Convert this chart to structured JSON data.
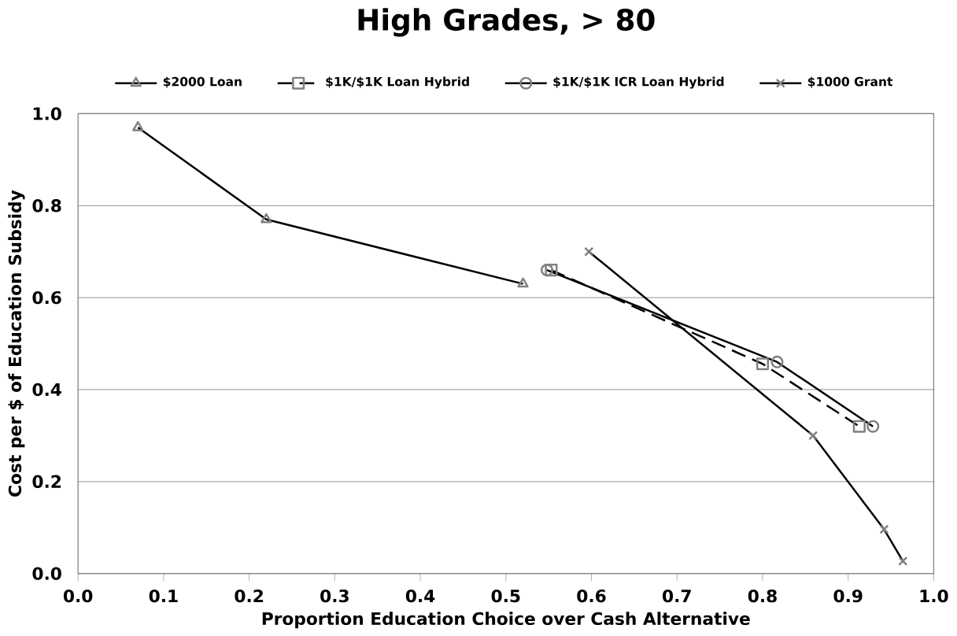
{
  "chart_data": {
    "type": "line",
    "title": "High Grades,  > 80",
    "xlabel": "Proportion Education Choice over Cash Alternative",
    "ylabel": "Cost per $ of Education Subsidy",
    "xlim": [
      0,
      1
    ],
    "ylim": [
      0,
      1
    ],
    "xticks": [
      {
        "value": 0,
        "label": "0.0"
      },
      0.1,
      0.2,
      0.3,
      0.4,
      0.5,
      0.6,
      0.7,
      0.8,
      0.9,
      {
        "value": 1,
        "label": "1.0"
      }
    ],
    "yticks": [
      {
        "value": 0,
        "label": "0.0"
      },
      0.2,
      0.4,
      0.6,
      0.8,
      {
        "value": 1,
        "label": "1.0"
      }
    ],
    "grid": "y",
    "legend": "top",
    "series": [
      {
        "name": "$2000 Loan",
        "color": "#000000",
        "marker": "triangle",
        "line_style": "solid",
        "x": [
          0.07,
          0.22,
          0.52
        ],
        "values": [
          0.97,
          0.77,
          0.63
        ]
      },
      {
        "name": "$1K/$1K Loan Hybrid",
        "color": "#000000",
        "marker": "square",
        "line_style": "dashed",
        "x": [
          0.553,
          0.8,
          0.913
        ],
        "values": [
          0.66,
          0.456,
          0.32
        ]
      },
      {
        "name": "$1K/$1K ICR Loan Hybrid",
        "color": "#000000",
        "marker": "circle",
        "line_style": "solid",
        "x": [
          0.548,
          0.817,
          0.929
        ],
        "values": [
          0.66,
          0.46,
          0.32
        ]
      },
      {
        "name": "$1000 Grant",
        "color": "#000000",
        "marker": "cross",
        "line_style": "solid",
        "x": [
          0.597,
          0.859,
          0.942,
          0.964
        ],
        "values": [
          0.7,
          0.3,
          0.096,
          0.027
        ]
      }
    ]
  }
}
